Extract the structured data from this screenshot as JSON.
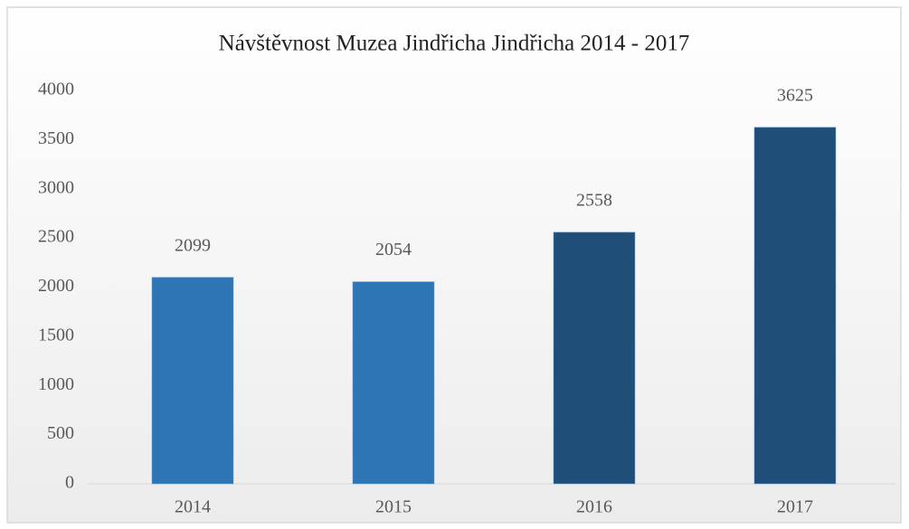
{
  "chart_data": {
    "type": "bar",
    "title": "Návštěvnost Muzea Jindřicha Jindřicha 2014 - 2017",
    "categories": [
      "2014",
      "2015",
      "2016",
      "2017"
    ],
    "values": [
      2099,
      2054,
      2558,
      3625
    ],
    "colors": [
      "#2e75b6",
      "#2e75b6",
      "#1f4e79",
      "#1f4e79"
    ],
    "ylim": [
      0,
      4000
    ],
    "yticks": [
      0,
      500,
      1000,
      1500,
      2000,
      2500,
      3000,
      3500,
      4000
    ],
    "grid": false
  }
}
